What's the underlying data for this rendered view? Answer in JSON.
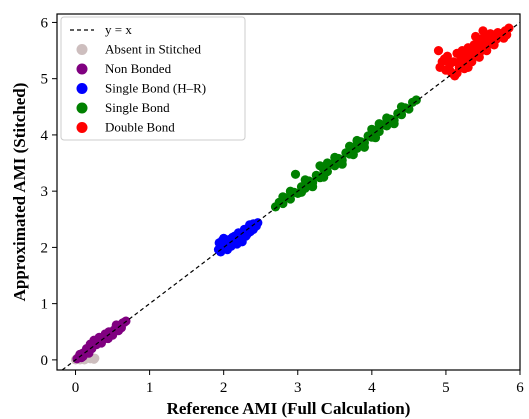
{
  "chart_data": {
    "type": "scatter",
    "title": "",
    "xlabel": "Reference AMI (Full Calculation)",
    "ylabel": "Approximated AMI (Stitched)",
    "xlim": [
      -0.25,
      6.0
    ],
    "ylim": [
      -0.18,
      6.15
    ],
    "xticks": [
      "0",
      "1",
      "2",
      "3",
      "4",
      "5",
      "6"
    ],
    "yticks": [
      "0",
      "1",
      "2",
      "3",
      "4",
      "5",
      "6"
    ],
    "grid": false,
    "legend_position": "top-left",
    "reference_line": {
      "name": "y = x",
      "style": "dashed",
      "color": "#000000"
    },
    "series": [
      {
        "name": "Absent in Stitched",
        "color": "#cdbebe",
        "points": [
          [
            0.0,
            0.0
          ],
          [
            0.02,
            0.03
          ],
          [
            0.05,
            0.01
          ],
          [
            0.04,
            0.06
          ],
          [
            0.08,
            0.02
          ],
          [
            0.1,
            0.05
          ],
          [
            0.06,
            0.0
          ],
          [
            0.12,
            0.0
          ],
          [
            0.2,
            0.02
          ],
          [
            0.25,
            0.01
          ],
          [
            0.26,
            0.03
          ],
          [
            0.03,
            0.02
          ],
          [
            0.15,
            0.04
          ]
        ]
      },
      {
        "name": "Non Bonded",
        "color": "#800080",
        "points": [
          [
            0.02,
            0.02
          ],
          [
            0.05,
            0.06
          ],
          [
            0.08,
            0.09
          ],
          [
            0.1,
            0.12
          ],
          [
            0.12,
            0.1
          ],
          [
            0.14,
            0.15
          ],
          [
            0.16,
            0.18
          ],
          [
            0.18,
            0.17
          ],
          [
            0.2,
            0.22
          ],
          [
            0.22,
            0.2
          ],
          [
            0.24,
            0.26
          ],
          [
            0.26,
            0.28
          ],
          [
            0.28,
            0.27
          ],
          [
            0.3,
            0.31
          ],
          [
            0.32,
            0.34
          ],
          [
            0.34,
            0.33
          ],
          [
            0.36,
            0.38
          ],
          [
            0.38,
            0.37
          ],
          [
            0.4,
            0.41
          ],
          [
            0.42,
            0.43
          ],
          [
            0.44,
            0.42
          ],
          [
            0.46,
            0.47
          ],
          [
            0.48,
            0.49
          ],
          [
            0.5,
            0.5
          ],
          [
            0.52,
            0.53
          ],
          [
            0.54,
            0.55
          ],
          [
            0.56,
            0.56
          ],
          [
            0.58,
            0.6
          ],
          [
            0.6,
            0.61
          ],
          [
            0.62,
            0.63
          ],
          [
            0.64,
            0.66
          ],
          [
            0.66,
            0.67
          ],
          [
            0.68,
            0.69
          ],
          [
            0.25,
            0.35
          ],
          [
            0.32,
            0.4
          ],
          [
            0.2,
            0.28
          ],
          [
            0.45,
            0.5
          ],
          [
            0.58,
            0.52
          ],
          [
            0.15,
            0.2
          ],
          [
            0.35,
            0.3
          ],
          [
            0.5,
            0.44
          ],
          [
            0.1,
            0.06
          ],
          [
            0.06,
            0.1
          ],
          [
            0.4,
            0.46
          ],
          [
            0.62,
            0.57
          ],
          [
            0.28,
            0.34
          ],
          [
            0.18,
            0.12
          ],
          [
            0.08,
            0.04
          ],
          [
            0.55,
            0.62
          ],
          [
            0.44,
            0.38
          ]
        ]
      },
      {
        "name": "Single Bond (H–R)",
        "color": "#0000ff",
        "points": [
          [
            1.93,
            1.96
          ],
          [
            1.95,
            2.0
          ],
          [
            1.97,
            2.04
          ],
          [
            2.0,
            2.0
          ],
          [
            2.02,
            2.06
          ],
          [
            2.04,
            2.02
          ],
          [
            2.06,
            2.1
          ],
          [
            2.08,
            2.05
          ],
          [
            2.1,
            2.12
          ],
          [
            2.12,
            2.08
          ],
          [
            2.14,
            2.15
          ],
          [
            2.16,
            2.11
          ],
          [
            2.18,
            2.18
          ],
          [
            2.2,
            2.14
          ],
          [
            2.22,
            2.22
          ],
          [
            2.24,
            2.17
          ],
          [
            2.26,
            2.25
          ],
          [
            2.28,
            2.2
          ],
          [
            2.3,
            2.28
          ],
          [
            2.32,
            2.24
          ],
          [
            2.34,
            2.32
          ],
          [
            2.36,
            2.28
          ],
          [
            2.38,
            2.36
          ],
          [
            2.4,
            2.32
          ],
          [
            2.42,
            2.4
          ],
          [
            2.44,
            2.38
          ],
          [
            2.46,
            2.44
          ],
          [
            1.94,
            2.08
          ],
          [
            1.98,
            2.12
          ],
          [
            2.05,
            1.96
          ],
          [
            2.1,
            2.02
          ],
          [
            2.15,
            2.2
          ],
          [
            2.25,
            2.1
          ],
          [
            2.35,
            2.4
          ],
          [
            2.2,
            2.26
          ],
          [
            2.0,
            2.16
          ],
          [
            1.96,
            1.92
          ],
          [
            2.12,
            2.18
          ],
          [
            2.28,
            2.32
          ],
          [
            2.4,
            2.42
          ],
          [
            2.3,
            2.2
          ],
          [
            2.18,
            2.06
          ],
          [
            2.08,
            2.14
          ]
        ]
      },
      {
        "name": "Single Bond",
        "color": "#008000",
        "points": [
          [
            2.7,
            2.72
          ],
          [
            2.75,
            2.8
          ],
          [
            2.8,
            2.78
          ],
          [
            2.85,
            2.88
          ],
          [
            2.9,
            2.86
          ],
          [
            2.95,
            2.98
          ],
          [
            3.0,
            2.96
          ],
          [
            3.05,
            3.08
          ],
          [
            3.1,
            3.05
          ],
          [
            3.15,
            3.18
          ],
          [
            3.2,
            3.15
          ],
          [
            3.25,
            3.28
          ],
          [
            3.3,
            3.24
          ],
          [
            3.35,
            3.38
          ],
          [
            3.4,
            3.35
          ],
          [
            3.45,
            3.48
          ],
          [
            3.5,
            3.45
          ],
          [
            3.55,
            3.58
          ],
          [
            3.6,
            3.55
          ],
          [
            3.65,
            3.68
          ],
          [
            3.7,
            3.66
          ],
          [
            3.75,
            3.78
          ],
          [
            3.8,
            3.76
          ],
          [
            3.85,
            3.88
          ],
          [
            3.9,
            3.86
          ],
          [
            3.95,
            3.98
          ],
          [
            4.0,
            3.96
          ],
          [
            4.05,
            4.08
          ],
          [
            4.1,
            4.06
          ],
          [
            4.15,
            4.18
          ],
          [
            4.2,
            4.16
          ],
          [
            4.25,
            4.28
          ],
          [
            4.3,
            4.26
          ],
          [
            4.35,
            4.38
          ],
          [
            4.4,
            4.36
          ],
          [
            4.45,
            4.48
          ],
          [
            4.5,
            4.46
          ],
          [
            4.55,
            4.58
          ],
          [
            4.6,
            4.62
          ],
          [
            2.97,
            3.3
          ],
          [
            3.3,
            3.45
          ],
          [
            2.9,
            3.0
          ],
          [
            3.1,
            3.2
          ],
          [
            3.4,
            3.5
          ],
          [
            3.7,
            3.8
          ],
          [
            4.0,
            4.1
          ],
          [
            4.2,
            4.3
          ],
          [
            3.2,
            3.08
          ],
          [
            3.6,
            3.48
          ],
          [
            3.9,
            3.78
          ],
          [
            4.3,
            4.2
          ],
          [
            2.8,
            2.9
          ],
          [
            3.05,
            2.98
          ],
          [
            3.5,
            3.6
          ],
          [
            3.8,
            3.9
          ],
          [
            4.1,
            4.2
          ],
          [
            4.4,
            4.5
          ],
          [
            3.35,
            3.25
          ],
          [
            3.75,
            3.65
          ],
          [
            4.05,
            3.95
          ]
        ]
      },
      {
        "name": "Double Bond",
        "color": "#ff0000",
        "points": [
          [
            4.9,
            5.5
          ],
          [
            4.92,
            5.2
          ],
          [
            4.95,
            5.3
          ],
          [
            5.0,
            5.15
          ],
          [
            5.02,
            5.4
          ],
          [
            5.05,
            5.25
          ],
          [
            5.08,
            5.1
          ],
          [
            5.1,
            5.3
          ],
          [
            5.12,
            5.05
          ],
          [
            5.15,
            5.45
          ],
          [
            5.18,
            5.2
          ],
          [
            5.2,
            5.35
          ],
          [
            5.22,
            5.5
          ],
          [
            5.25,
            5.28
          ],
          [
            5.28,
            5.42
          ],
          [
            5.3,
            5.55
          ],
          [
            5.32,
            5.35
          ],
          [
            5.35,
            5.48
          ],
          [
            5.38,
            5.6
          ],
          [
            5.4,
            5.42
          ],
          [
            5.42,
            5.55
          ],
          [
            5.45,
            5.7
          ],
          [
            5.48,
            5.5
          ],
          [
            5.5,
            5.62
          ],
          [
            5.52,
            5.75
          ],
          [
            5.55,
            5.58
          ],
          [
            5.58,
            5.7
          ],
          [
            5.6,
            5.8
          ],
          [
            5.62,
            5.65
          ],
          [
            5.65,
            5.78
          ],
          [
            5.68,
            5.7
          ],
          [
            5.7,
            5.82
          ],
          [
            5.72,
            5.75
          ],
          [
            5.75,
            5.8
          ],
          [
            5.78,
            5.72
          ],
          [
            5.8,
            5.85
          ],
          [
            5.82,
            5.78
          ],
          [
            5.85,
            5.9
          ],
          [
            5.05,
            5.15
          ],
          [
            5.15,
            5.1
          ],
          [
            5.25,
            5.18
          ],
          [
            5.35,
            5.3
          ],
          [
            5.45,
            5.38
          ],
          [
            5.55,
            5.5
          ],
          [
            5.65,
            5.6
          ],
          [
            5.4,
            5.75
          ],
          [
            5.5,
            5.85
          ],
          [
            5.2,
            5.25
          ],
          [
            5.3,
            5.2
          ],
          [
            4.98,
            5.35
          ]
        ]
      }
    ]
  }
}
